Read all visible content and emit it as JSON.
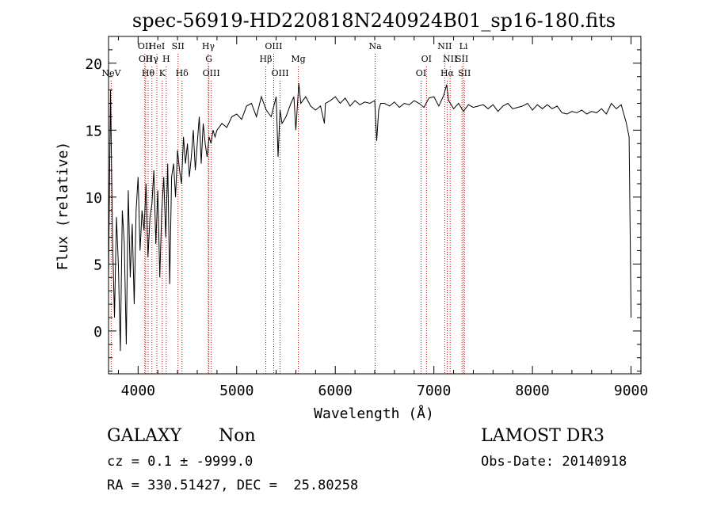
{
  "chart_data": {
    "type": "line",
    "title": "spec-56919-HD220818N240924B01_sp16-180.fits",
    "xlabel": "Wavelength (Å)",
    "ylabel": "Flux (relative)",
    "xlim": [
      3700,
      9100
    ],
    "ylim": [
      -3.2,
      22
    ],
    "x_ticks": [
      4000,
      5000,
      6000,
      7000,
      8000,
      9000
    ],
    "y_ticks": [
      0,
      5,
      10,
      15,
      20
    ],
    "grid": false,
    "series": [
      {
        "name": "spectrum",
        "x": [
          3700,
          3720,
          3740,
          3760,
          3780,
          3800,
          3820,
          3840,
          3860,
          3880,
          3900,
          3920,
          3940,
          3960,
          3980,
          4000,
          4020,
          4040,
          4060,
          4080,
          4100,
          4120,
          4140,
          4160,
          4180,
          4200,
          4220,
          4240,
          4260,
          4280,
          4300,
          4320,
          4340,
          4360,
          4380,
          4400,
          4420,
          4440,
          4460,
          4480,
          4500,
          4520,
          4540,
          4560,
          4580,
          4600,
          4620,
          4640,
          4660,
          4680,
          4700,
          4720,
          4740,
          4760,
          4780,
          4800,
          4850,
          4900,
          4950,
          5000,
          5050,
          5100,
          5150,
          5200,
          5250,
          5300,
          5350,
          5400,
          5420,
          5440,
          5460,
          5500,
          5550,
          5580,
          5600,
          5630,
          5650,
          5700,
          5750,
          5800,
          5850,
          5890,
          5900,
          5950,
          6000,
          6050,
          6100,
          6150,
          6200,
          6250,
          6300,
          6350,
          6400,
          6420,
          6440,
          6460,
          6500,
          6550,
          6600,
          6650,
          6700,
          6750,
          6800,
          6850,
          6900,
          6950,
          7000,
          7050,
          7100,
          7130,
          7150,
          7200,
          7250,
          7300,
          7350,
          7400,
          7450,
          7500,
          7550,
          7600,
          7650,
          7700,
          7750,
          7800,
          7850,
          7900,
          7950,
          8000,
          8050,
          8100,
          8150,
          8200,
          8250,
          8300,
          8350,
          8400,
          8450,
          8500,
          8550,
          8600,
          8650,
          8700,
          8750,
          8800,
          8850,
          8900,
          8950,
          8980,
          9000
        ],
        "y": [
          4.0,
          18.0,
          7.0,
          1.0,
          8.5,
          5.0,
          -1.5,
          9.0,
          6.5,
          -1.0,
          10.5,
          4.0,
          8.0,
          2.0,
          9.0,
          11.5,
          6.0,
          9.0,
          7.5,
          11.0,
          5.5,
          8.5,
          9.5,
          12.0,
          6.5,
          10.5,
          4.0,
          9.0,
          11.5,
          7.0,
          12.5,
          3.5,
          11.5,
          12.5,
          10.0,
          13.5,
          12.0,
          11.0,
          14.5,
          12.5,
          14.0,
          11.5,
          13.0,
          15.0,
          12.0,
          14.0,
          16.0,
          12.5,
          15.5,
          14.0,
          13.0,
          14.5,
          14.0,
          15.0,
          14.5,
          15.0,
          15.5,
          15.2,
          16.0,
          16.2,
          15.8,
          16.8,
          17.0,
          16.0,
          17.5,
          16.5,
          16.0,
          17.5,
          13.0,
          16.5,
          15.5,
          16.0,
          17.0,
          17.5,
          15.0,
          18.5,
          17.0,
          17.5,
          16.8,
          16.5,
          16.8,
          15.5,
          17.0,
          17.2,
          17.5,
          17.0,
          17.4,
          16.8,
          17.2,
          16.9,
          17.1,
          17.0,
          17.2,
          14.2,
          16.5,
          17.0,
          17.0,
          16.8,
          17.1,
          16.7,
          17.0,
          16.9,
          17.2,
          17.0,
          16.7,
          17.4,
          17.5,
          16.8,
          17.6,
          18.4,
          17.2,
          16.6,
          17.0,
          16.4,
          16.9,
          16.7,
          16.8,
          16.9,
          16.6,
          16.9,
          16.4,
          16.8,
          17.0,
          16.6,
          16.7,
          16.8,
          17.0,
          16.5,
          16.9,
          16.6,
          16.9,
          16.6,
          16.8,
          16.3,
          16.2,
          16.4,
          16.3,
          16.5,
          16.2,
          16.4,
          16.3,
          16.6,
          16.2,
          17.0,
          16.6,
          16.9,
          15.6,
          14.5,
          1.0
        ]
      }
    ],
    "lines": [
      {
        "name": "NeV",
        "x": 3727,
        "label_row": 3
      },
      {
        "name": "OII",
        "x": 4068,
        "label_row": 0
      },
      {
        "name": "OII",
        "x": 4076,
        "label_row": 1
      },
      {
        "name": "Hθ",
        "x": 4102,
        "label_row": 2
      },
      {
        "name": "Hγ",
        "x": 4140,
        "label_row": 1
      },
      {
        "name": "HeI",
        "x": 4190,
        "label_row": 0
      },
      {
        "name": "K",
        "x": 4245,
        "label_row": 2
      },
      {
        "name": "H",
        "x": 4285,
        "label_row": 1
      },
      {
        "name": "SII",
        "x": 4405,
        "label_row": 0
      },
      {
        "name": "Hδ",
        "x": 4445,
        "label_row": 2
      },
      {
        "name": "Hγ",
        "x": 4712,
        "label_row": 0
      },
      {
        "name": "G",
        "x": 4718,
        "label_row": 1
      },
      {
        "name": "OIII",
        "x": 4742,
        "label_row": 2
      },
      {
        "name": "Hβ",
        "x": 5295,
        "label_row": 1
      },
      {
        "name": "OIII",
        "x": 5375,
        "label_row": 0
      },
      {
        "name": "OIII",
        "x": 5440,
        "label_row": 2
      },
      {
        "name": "Mg",
        "x": 5625,
        "label_row": 1
      },
      {
        "name": "Na",
        "x": 6405,
        "label_row": 0
      },
      {
        "name": "OI",
        "x": 6870,
        "label_row": 2
      },
      {
        "name": "OI",
        "x": 6925,
        "label_row": 1
      },
      {
        "name": "NII",
        "x": 7110,
        "label_row": 0
      },
      {
        "name": "NII",
        "x": 7165,
        "label_row": 1
      },
      {
        "name": "Hα",
        "x": 7135,
        "label_row": 2
      },
      {
        "name": "SII",
        "x": 7285,
        "label_row": 1
      },
      {
        "name": "Li",
        "x": 7300,
        "label_row": 0
      },
      {
        "name": "SII",
        "x": 7310,
        "label_row": 2
      }
    ]
  },
  "footer": {
    "class_label": "GALAXY",
    "subclass_label": "Non",
    "survey_label": "LAMOST DR3",
    "redshift_text": "cz = 0.1 ± -9999.0",
    "obs_date_text": "Obs-Date: 20140918",
    "coords_text": "RA = 330.51427, DEC =  25.80258"
  },
  "colors": {
    "spectrum": "#000000",
    "line_marker": "#cc0000",
    "axes": "#000000"
  }
}
